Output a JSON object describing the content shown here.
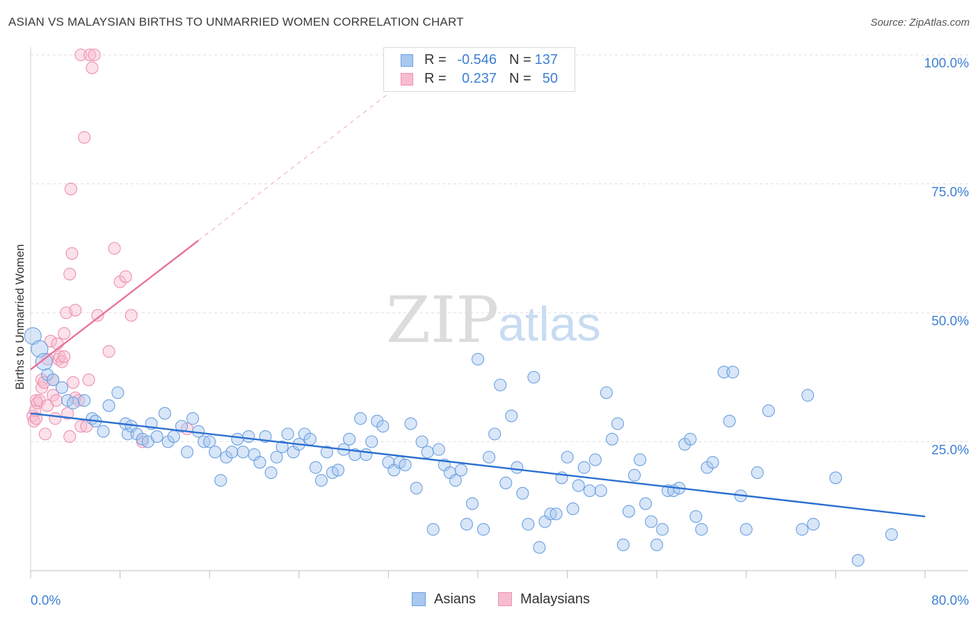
{
  "title": "ASIAN VS MALAYSIAN BIRTHS TO UNMARRIED WOMEN CORRELATION CHART",
  "source": "Source: ZipAtlas.com",
  "watermark": {
    "zip": "ZIP",
    "atlas": "atlas"
  },
  "legend": {
    "rows": [
      {
        "r_label": "R =",
        "r_value": "-0.546",
        "n_label": "N =",
        "n_value": "137",
        "fill": "#a9c8f0",
        "stroke": "#6a9fe0"
      },
      {
        "r_label": "R =",
        "r_value": "0.237",
        "n_label": "N =",
        "n_value": "50",
        "fill": "#f7bcd0",
        "stroke": "#ee8fae"
      }
    ]
  },
  "bottom_legend": [
    {
      "label": "Asians",
      "fill": "#a9c8f0",
      "stroke": "#6a9fe0"
    },
    {
      "label": "Malaysians",
      "fill": "#f7bcd0",
      "stroke": "#ee8fae"
    }
  ],
  "chart_data": {
    "type": "scatter",
    "ylabel": "Births to Unmarried Women",
    "xlim": [
      0,
      80
    ],
    "ylim": [
      0,
      100
    ],
    "x_tick_labels": {
      "left": "0.0%",
      "right": "80.0%"
    },
    "y_ticks": [
      {
        "value": 100,
        "label": "100.0%"
      },
      {
        "value": 75,
        "label": "75.0%"
      },
      {
        "value": 50,
        "label": "50.0%"
      },
      {
        "value": 25,
        "label": "25.0%"
      }
    ],
    "grid": "horizontal dashed",
    "series": [
      {
        "name": "Asians",
        "color": "#6a9fe0",
        "fill": "#a9c8f0",
        "trend": {
          "x": [
            0,
            80
          ],
          "y": [
            30.5,
            10.5
          ],
          "style": "solid",
          "color": "#2b6fd0"
        },
        "points": [
          [
            0.2,
            45.5
          ],
          [
            0.8,
            43
          ],
          [
            1.2,
            40.5
          ],
          [
            1.5,
            38
          ],
          [
            2,
            37
          ],
          [
            2.8,
            35.5
          ],
          [
            3.3,
            33
          ],
          [
            3.8,
            32.5
          ],
          [
            4.8,
            33
          ],
          [
            5.5,
            29.5
          ],
          [
            5.8,
            29
          ],
          [
            6.5,
            27
          ],
          [
            7,
            32
          ],
          [
            7.8,
            34.5
          ],
          [
            8.5,
            28.5
          ],
          [
            8.7,
            26.5
          ],
          [
            9,
            28
          ],
          [
            9.5,
            26.5
          ],
          [
            10,
            25.5
          ],
          [
            10.5,
            25
          ],
          [
            10.8,
            28.5
          ],
          [
            11.3,
            26
          ],
          [
            12,
            30.5
          ],
          [
            12.3,
            25
          ],
          [
            12.8,
            26
          ],
          [
            13.5,
            28
          ],
          [
            14,
            23
          ],
          [
            14.5,
            29.5
          ],
          [
            15,
            27
          ],
          [
            15.5,
            25
          ],
          [
            16,
            25
          ],
          [
            16.5,
            23
          ],
          [
            17,
            17.5
          ],
          [
            17.5,
            22
          ],
          [
            18,
            23
          ],
          [
            18.5,
            25.5
          ],
          [
            19,
            23
          ],
          [
            19.5,
            26
          ],
          [
            20,
            22.5
          ],
          [
            20.5,
            21
          ],
          [
            21,
            26
          ],
          [
            21.5,
            19
          ],
          [
            22,
            22
          ],
          [
            22.5,
            24
          ],
          [
            23,
            26.5
          ],
          [
            23.5,
            23
          ],
          [
            24,
            24.5
          ],
          [
            24.5,
            26.5
          ],
          [
            25,
            25.5
          ],
          [
            25.5,
            20
          ],
          [
            26,
            17.5
          ],
          [
            26.5,
            23
          ],
          [
            27,
            19
          ],
          [
            27.5,
            19.5
          ],
          [
            28,
            23.5
          ],
          [
            28.5,
            25.5
          ],
          [
            29,
            22.5
          ],
          [
            29.5,
            29.5
          ],
          [
            30,
            22.5
          ],
          [
            30.5,
            25
          ],
          [
            31,
            29
          ],
          [
            31.5,
            28
          ],
          [
            32,
            21
          ],
          [
            32.5,
            19.5
          ],
          [
            33,
            21
          ],
          [
            33.5,
            20.5
          ],
          [
            34,
            28.5
          ],
          [
            34.5,
            16
          ],
          [
            35,
            25
          ],
          [
            35.5,
            23
          ],
          [
            36,
            8
          ],
          [
            36.5,
            23.5
          ],
          [
            37,
            20.5
          ],
          [
            37.5,
            19
          ],
          [
            38,
            17.5
          ],
          [
            38.5,
            19.5
          ],
          [
            39,
            9
          ],
          [
            39.5,
            13
          ],
          [
            40,
            41
          ],
          [
            40.5,
            8
          ],
          [
            41,
            22
          ],
          [
            41.5,
            26.5
          ],
          [
            42,
            36
          ],
          [
            42.5,
            17
          ],
          [
            43,
            30
          ],
          [
            43.5,
            20
          ],
          [
            44,
            15
          ],
          [
            44.5,
            9
          ],
          [
            45,
            37.5
          ],
          [
            45.5,
            4.5
          ],
          [
            46,
            9.5
          ],
          [
            46.5,
            11
          ],
          [
            47,
            11
          ],
          [
            47.5,
            18
          ],
          [
            48,
            22
          ],
          [
            48.5,
            12
          ],
          [
            49,
            16.5
          ],
          [
            49.5,
            20
          ],
          [
            50,
            15.5
          ],
          [
            50.5,
            21.5
          ],
          [
            51,
            15.5
          ],
          [
            51.5,
            34.5
          ],
          [
            52,
            25.5
          ],
          [
            52.5,
            28.5
          ],
          [
            53,
            5
          ],
          [
            53.5,
            11.5
          ],
          [
            54,
            18.5
          ],
          [
            54.5,
            21.5
          ],
          [
            55,
            13
          ],
          [
            55.5,
            9.5
          ],
          [
            56,
            5
          ],
          [
            56.5,
            8
          ],
          [
            57,
            15.5
          ],
          [
            57.5,
            15.5
          ],
          [
            58,
            16
          ],
          [
            58.5,
            24.5
          ],
          [
            59,
            25.5
          ],
          [
            59.5,
            10.5
          ],
          [
            60,
            8
          ],
          [
            60.5,
            20
          ],
          [
            61,
            21
          ],
          [
            62,
            38.5
          ],
          [
            62.5,
            29
          ],
          [
            62.8,
            38.5
          ],
          [
            63.5,
            14.5
          ],
          [
            64,
            8
          ],
          [
            65,
            19
          ],
          [
            66,
            31
          ],
          [
            69,
            8
          ],
          [
            69.5,
            34
          ],
          [
            70,
            9
          ],
          [
            72,
            18
          ],
          [
            74,
            2
          ],
          [
            77,
            7
          ]
        ]
      },
      {
        "name": "Malaysians",
        "color": "#ee8fae",
        "fill": "#f7bcd0",
        "trend": {
          "x": [
            0,
            15
          ],
          "y": [
            39,
            64
          ],
          "style": "solid",
          "color": "#e8719a",
          "extension": {
            "x": [
              15,
              32
            ],
            "y": [
              64,
              92.5
            ],
            "style": "dashed"
          }
        },
        "points": [
          [
            0.2,
            30
          ],
          [
            0.3,
            29
          ],
          [
            0.4,
            31
          ],
          [
            0.5,
            33
          ],
          [
            0.5,
            29.5
          ],
          [
            0.6,
            32.5
          ],
          [
            0.8,
            33
          ],
          [
            1,
            37
          ],
          [
            1,
            35.5
          ],
          [
            1.2,
            36.5
          ],
          [
            1.3,
            26.5
          ],
          [
            1.5,
            41
          ],
          [
            1.5,
            32
          ],
          [
            1.8,
            44.5
          ],
          [
            2,
            37
          ],
          [
            2,
            34
          ],
          [
            2.2,
            29.5
          ],
          [
            2.3,
            33
          ],
          [
            2.4,
            44
          ],
          [
            2.5,
            41
          ],
          [
            2.6,
            41.5
          ],
          [
            2.8,
            40.5
          ],
          [
            3,
            41.5
          ],
          [
            3,
            46
          ],
          [
            3.2,
            50
          ],
          [
            3.3,
            30.5
          ],
          [
            3.5,
            57.5
          ],
          [
            3.5,
            26
          ],
          [
            3.6,
            74
          ],
          [
            3.7,
            61.5
          ],
          [
            3.8,
            36.5
          ],
          [
            4,
            33.5
          ],
          [
            4,
            50.5
          ],
          [
            4.3,
            33
          ],
          [
            4.5,
            28
          ],
          [
            4.5,
            100
          ],
          [
            4.8,
            84
          ],
          [
            5,
            28
          ],
          [
            5.2,
            37
          ],
          [
            5.3,
            100
          ],
          [
            5.5,
            97.5
          ],
          [
            5.7,
            100
          ],
          [
            6,
            49.5
          ],
          [
            7,
            42.5
          ],
          [
            7.5,
            62.5
          ],
          [
            8,
            56
          ],
          [
            8.5,
            57
          ],
          [
            9,
            49.5
          ],
          [
            10,
            25
          ],
          [
            14,
            27.5
          ]
        ]
      }
    ]
  }
}
